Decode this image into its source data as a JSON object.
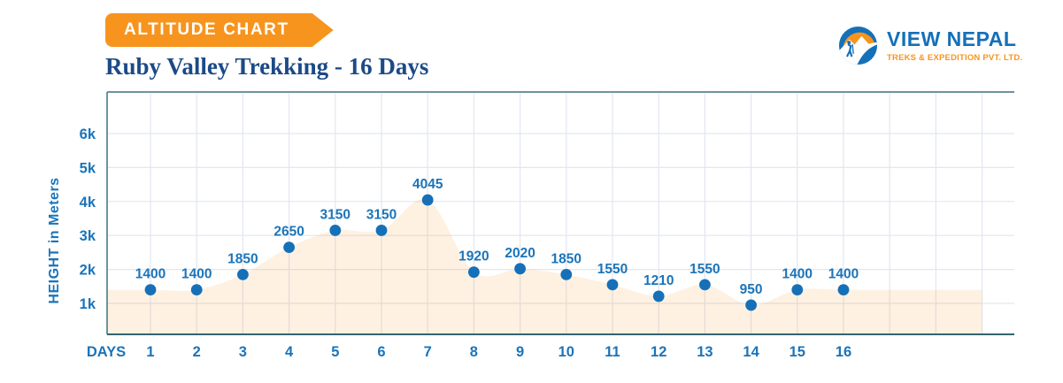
{
  "banner": {
    "label": "ALTITUDE CHART"
  },
  "title": "Ruby Valley Trekking - 16 Days",
  "logo": {
    "name": "VIEW NEPAL",
    "tagline": "TREKS & EXPEDITION PVT. LTD."
  },
  "colors": {
    "accent_orange": "#f7941d",
    "brand_blue": "#1570b8",
    "title_navy": "#1c4a87",
    "label_blue": "#1b74ba",
    "grid_line": "#e2e6f0",
    "axis_frame": "#6b949d",
    "axis_bottom": "#35636f",
    "point": "#1570b8",
    "area_fill": "rgba(247,148,29,0.13)"
  },
  "chart_data": {
    "type": "area",
    "title": "Ruby Valley Trekking - 16 Days",
    "xlabel": "DAYS",
    "ylabel": "HEIGHT in Meters",
    "categories": [
      "1",
      "2",
      "3",
      "4",
      "5",
      "6",
      "7",
      "8",
      "9",
      "10",
      "11",
      "12",
      "13",
      "14",
      "15",
      "16"
    ],
    "values": [
      1400,
      1400,
      1850,
      2650,
      3150,
      3150,
      4045,
      1920,
      2020,
      1850,
      1550,
      1210,
      1550,
      950,
      1400,
      1400
    ],
    "y_ticks": [
      {
        "label": "1k",
        "value": 1000
      },
      {
        "label": "2k",
        "value": 2000
      },
      {
        "label": "3k",
        "value": 3000
      },
      {
        "label": "4k",
        "value": 4000
      },
      {
        "label": "5k",
        "value": 5000
      },
      {
        "label": "6k",
        "value": 6000
      }
    ],
    "ylim": [
      0,
      7200
    ],
    "grid": true,
    "legend": false,
    "marker": "circle",
    "fill_extends_beyond_last_day": true
  }
}
